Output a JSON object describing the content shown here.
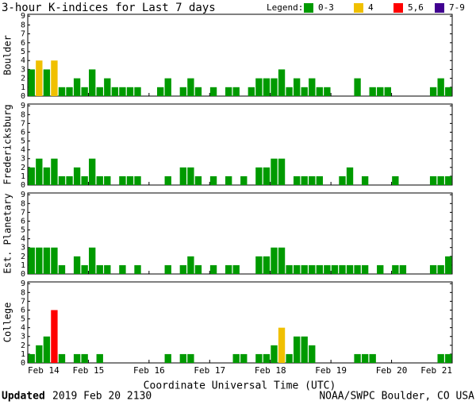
{
  "title": "3-hour K-indices for Last 7 days",
  "legend": {
    "label": "Legend:",
    "entries": [
      {
        "name": "0-3",
        "color": "#009a00"
      },
      {
        "name": "4",
        "color": "#f0c000"
      },
      {
        "name": "5,6",
        "color": "#ff0000"
      },
      {
        "name": "7-9",
        "color": "#400090"
      }
    ]
  },
  "x_axis": {
    "title": "Coordinate Universal Time (UTC)",
    "ticks": [
      "Feb 14",
      "Feb 15",
      "Feb 16",
      "Feb 17",
      "Feb 18",
      "Feb 19",
      "Feb 20",
      "Feb 21"
    ]
  },
  "footer": {
    "updated_label": "Updated",
    "updated": "2019 Feb 20 2130",
    "source": "NOAA/SWPC Boulder, CO USA"
  },
  "chart_data": [
    {
      "type": "bar",
      "y_label": "Boulder",
      "ylim": [
        0,
        9.2
      ],
      "yticks": [
        0,
        1,
        2,
        3,
        4,
        5,
        6,
        7,
        8,
        9
      ],
      "values": [
        3,
        4,
        3,
        4,
        1,
        1,
        2,
        1,
        3,
        1,
        2,
        1,
        1,
        1,
        1,
        0,
        0,
        1,
        2,
        0,
        1,
        2,
        1,
        0,
        1,
        0,
        1,
        1,
        0,
        1,
        2,
        2,
        2,
        3,
        1,
        2,
        1,
        2,
        1,
        1,
        0,
        0,
        0,
        2,
        0,
        1,
        1,
        1,
        0,
        0,
        0,
        0,
        0,
        1,
        2,
        1
      ],
      "colors": [
        "#009a00",
        "#f0c000",
        "#009a00",
        "#f0c000",
        "#009a00",
        "#009a00",
        "#009a00",
        "#009a00",
        "#009a00",
        "#009a00",
        "#009a00",
        "#009a00",
        "#009a00",
        "#009a00",
        "#009a00",
        "#009a00",
        "#009a00",
        "#009a00",
        "#009a00",
        "#009a00",
        "#009a00",
        "#009a00",
        "#009a00",
        "#009a00",
        "#009a00",
        "#009a00",
        "#009a00",
        "#009a00",
        "#009a00",
        "#009a00",
        "#009a00",
        "#009a00",
        "#009a00",
        "#009a00",
        "#009a00",
        "#009a00",
        "#009a00",
        "#009a00",
        "#009a00",
        "#009a00",
        "#009a00",
        "#009a00",
        "#009a00",
        "#009a00",
        "#009a00",
        "#009a00",
        "#009a00",
        "#009a00",
        "#009a00",
        "#009a00",
        "#009a00",
        "#009a00",
        "#009a00",
        "#009a00",
        "#009a00",
        "#009a00"
      ]
    },
    {
      "type": "bar",
      "y_label": "Fredericksburg",
      "ylim": [
        0,
        9.2
      ],
      "yticks": [
        0,
        1,
        2,
        3,
        4,
        5,
        6,
        7,
        8,
        9
      ],
      "values": [
        2,
        3,
        2,
        3,
        1,
        1,
        2,
        1,
        3,
        1,
        1,
        0,
        1,
        1,
        1,
        0,
        0,
        0,
        1,
        0,
        2,
        2,
        1,
        0,
        1,
        0,
        1,
        0,
        1,
        0,
        2,
        2,
        3,
        3,
        0,
        1,
        1,
        1,
        1,
        0,
        0,
        1,
        2,
        0,
        1,
        0,
        0,
        0,
        1,
        0,
        0,
        0,
        0,
        1,
        1,
        1
      ],
      "colors": [
        "#009a00",
        "#009a00",
        "#009a00",
        "#009a00",
        "#009a00",
        "#009a00",
        "#009a00",
        "#009a00",
        "#009a00",
        "#009a00",
        "#009a00",
        "#009a00",
        "#009a00",
        "#009a00",
        "#009a00",
        "#009a00",
        "#009a00",
        "#009a00",
        "#009a00",
        "#009a00",
        "#009a00",
        "#009a00",
        "#009a00",
        "#009a00",
        "#009a00",
        "#009a00",
        "#009a00",
        "#009a00",
        "#009a00",
        "#009a00",
        "#009a00",
        "#009a00",
        "#009a00",
        "#009a00",
        "#009a00",
        "#009a00",
        "#009a00",
        "#009a00",
        "#009a00",
        "#009a00",
        "#009a00",
        "#009a00",
        "#009a00",
        "#009a00",
        "#009a00",
        "#009a00",
        "#009a00",
        "#009a00",
        "#009a00",
        "#009a00",
        "#009a00",
        "#009a00",
        "#009a00",
        "#009a00",
        "#009a00",
        "#009a00"
      ]
    },
    {
      "type": "bar",
      "y_label": "Est. Planetary",
      "ylim": [
        0,
        9.2
      ],
      "yticks": [
        0,
        1,
        2,
        3,
        4,
        5,
        6,
        7,
        8,
        9
      ],
      "values": [
        3,
        3,
        3,
        3,
        1,
        0,
        2,
        1,
        3,
        1,
        1,
        0,
        1,
        0,
        1,
        0,
        0,
        0,
        1,
        0,
        1,
        2,
        1,
        0,
        1,
        0,
        1,
        1,
        0,
        0,
        2,
        2,
        3,
        3,
        1,
        1,
        1,
        1,
        1,
        1,
        1,
        1,
        1,
        1,
        1,
        0,
        1,
        0,
        1,
        1,
        0,
        0,
        0,
        1,
        1,
        2
      ],
      "colors": [
        "#009a00",
        "#009a00",
        "#009a00",
        "#009a00",
        "#009a00",
        "#009a00",
        "#009a00",
        "#009a00",
        "#009a00",
        "#009a00",
        "#009a00",
        "#009a00",
        "#009a00",
        "#009a00",
        "#009a00",
        "#009a00",
        "#009a00",
        "#009a00",
        "#009a00",
        "#009a00",
        "#009a00",
        "#009a00",
        "#009a00",
        "#009a00",
        "#009a00",
        "#009a00",
        "#009a00",
        "#009a00",
        "#009a00",
        "#009a00",
        "#009a00",
        "#009a00",
        "#009a00",
        "#009a00",
        "#009a00",
        "#009a00",
        "#009a00",
        "#009a00",
        "#009a00",
        "#009a00",
        "#009a00",
        "#009a00",
        "#009a00",
        "#009a00",
        "#009a00",
        "#009a00",
        "#009a00",
        "#009a00",
        "#009a00",
        "#009a00",
        "#009a00",
        "#009a00",
        "#009a00",
        "#009a00",
        "#009a00",
        "#009a00"
      ]
    },
    {
      "type": "bar",
      "y_label": "College",
      "ylim": [
        0,
        9.2
      ],
      "yticks": [
        0,
        1,
        2,
        3,
        4,
        5,
        6,
        7,
        8,
        9
      ],
      "values": [
        1,
        2,
        3,
        6,
        1,
        0,
        1,
        1,
        0,
        1,
        0,
        0,
        0,
        0,
        0,
        0,
        0,
        0,
        1,
        0,
        1,
        1,
        0,
        0,
        0,
        0,
        0,
        1,
        1,
        0,
        1,
        1,
        2,
        4,
        1,
        3,
        3,
        2,
        0,
        0,
        0,
        0,
        0,
        1,
        1,
        1,
        0,
        0,
        0,
        0,
        0,
        0,
        0,
        0,
        1,
        1
      ],
      "colors": [
        "#009a00",
        "#009a00",
        "#009a00",
        "#ff0000",
        "#009a00",
        "#009a00",
        "#009a00",
        "#009a00",
        "#009a00",
        "#009a00",
        "#009a00",
        "#009a00",
        "#009a00",
        "#009a00",
        "#009a00",
        "#009a00",
        "#009a00",
        "#009a00",
        "#009a00",
        "#009a00",
        "#009a00",
        "#009a00",
        "#009a00",
        "#009a00",
        "#009a00",
        "#009a00",
        "#009a00",
        "#009a00",
        "#009a00",
        "#009a00",
        "#009a00",
        "#009a00",
        "#009a00",
        "#f0c000",
        "#009a00",
        "#009a00",
        "#009a00",
        "#009a00",
        "#009a00",
        "#009a00",
        "#009a00",
        "#009a00",
        "#009a00",
        "#009a00",
        "#009a00",
        "#009a00",
        "#009a00",
        "#009a00",
        "#009a00",
        "#009a00",
        "#009a00",
        "#009a00",
        "#009a00",
        "#009a00",
        "#009a00",
        "#009a00"
      ]
    }
  ]
}
